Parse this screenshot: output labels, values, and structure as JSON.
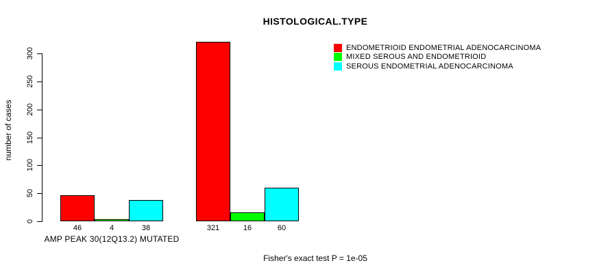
{
  "chart_data": {
    "type": "bar",
    "title": "HISTOLOGICAL.TYPE",
    "ylabel": "number of cases",
    "xlabel": "",
    "ylim": [
      0,
      300
    ],
    "yticks": [
      0,
      50,
      100,
      150,
      200,
      250,
      300
    ],
    "grid": false,
    "legend_position": "top-right",
    "groups": [
      "AMP PEAK 30(12Q13.2) MUTATED",
      ""
    ],
    "series": [
      {
        "name": "ENDOMETRIOID ENDOMETRIAL ADENOCARCINOMA",
        "color": "#FF0000",
        "values": [
          46,
          321
        ]
      },
      {
        "name": "MIXED SEROUS AND ENDOMETRIOID",
        "color": "#00FF00",
        "values": [
          4,
          16
        ]
      },
      {
        "name": "SEROUS ENDOMETRIAL ADENOCARCINOMA",
        "color": "#00FFFF",
        "values": [
          38,
          60
        ]
      }
    ],
    "bar_value_labels_shown": true,
    "annotation": "Fisher's exact test P = 1e-05"
  },
  "colors": {
    "axis": "#000000",
    "background": "#FFFFFF",
    "bar_border": "#000000"
  }
}
